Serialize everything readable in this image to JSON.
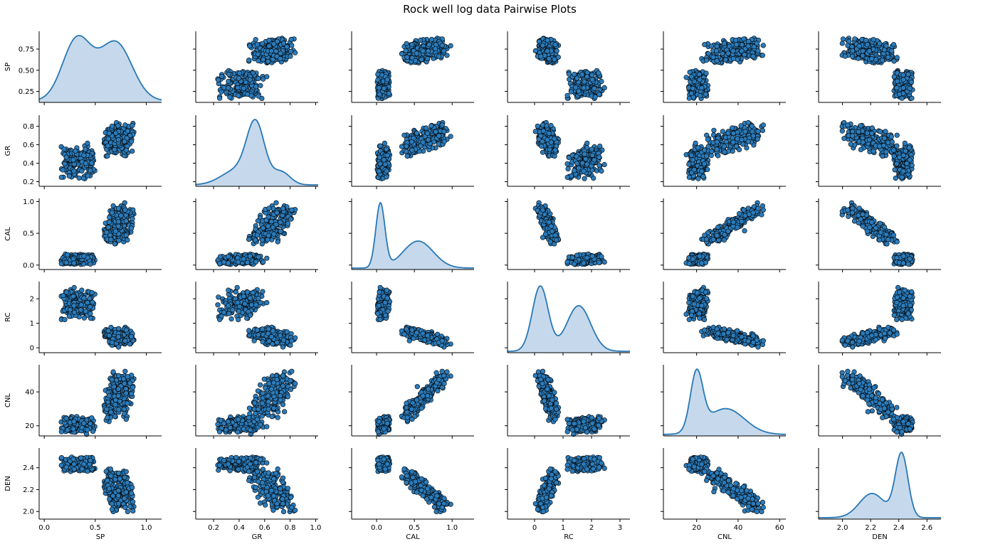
{
  "chart_data": {
    "type": "scatter",
    "title": "Rock well log data Pairwise Plots",
    "variables": [
      "SP",
      "GR",
      "CAL",
      "RC",
      "CNL",
      "DEN"
    ],
    "axes": {
      "SP": {
        "range": [
          -0.05,
          1.15
        ],
        "ticks": [
          0.0,
          0.5,
          1.0
        ],
        "tick_labels_x": [
          "0.0",
          "0.5",
          "1.0"
        ],
        "tick_labels_y": [
          "0.25",
          "0.50",
          "0.75"
        ],
        "ticks_y": [
          0.25,
          0.5,
          0.75
        ],
        "range_y": [
          0.12,
          0.96
        ]
      },
      "GR": {
        "range": [
          0.06,
          1.02
        ],
        "ticks": [
          0.2,
          0.4,
          0.6,
          0.8,
          1.0
        ],
        "tick_labels_x": [
          "0.2",
          "0.4",
          "0.6",
          "0.8",
          "1.0"
        ],
        "ticks_y": [
          0.2,
          0.4,
          0.6,
          0.8
        ],
        "tick_labels_y": [
          "0.2",
          "0.4",
          "0.6",
          "0.8"
        ],
        "range_y": [
          0.15,
          0.92
        ]
      },
      "CAL": {
        "range": [
          -0.33,
          1.29
        ],
        "ticks": [
          0.0,
          0.5,
          1.0
        ],
        "tick_labels_x": [
          "0.0",
          "0.5",
          "1.0"
        ],
        "ticks_y": [
          0.0,
          0.5,
          1.0
        ],
        "tick_labels_y": [
          "0.0",
          "0.5",
          "1.0"
        ],
        "range_y": [
          -0.07,
          1.05
        ]
      },
      "RC": {
        "range": [
          -0.95,
          3.35
        ],
        "ticks": [
          0,
          1,
          2,
          3
        ],
        "tick_labels_x": [
          "0",
          "1",
          "2",
          "3"
        ],
        "ticks_y": [
          0,
          1,
          2
        ],
        "tick_labels_y": [
          "0",
          "1",
          "2"
        ],
        "range_y": [
          -0.2,
          2.7
        ]
      },
      "CNL": {
        "range": [
          4,
          63
        ],
        "ticks": [
          20,
          40,
          60
        ],
        "tick_labels_x": [
          "20",
          "40",
          "60"
        ],
        "ticks_y": [
          20,
          40
        ],
        "tick_labels_y": [
          "20",
          "40"
        ],
        "range_y": [
          14,
          56
        ]
      },
      "DEN": {
        "range": [
          1.83,
          2.7
        ],
        "ticks": [
          2.0,
          2.2,
          2.4,
          2.6
        ],
        "tick_labels_x": [
          "2.0",
          "2.2",
          "2.4",
          "2.6"
        ],
        "ticks_y": [
          2.0,
          2.2,
          2.4
        ],
        "tick_labels_y": [
          "2.0",
          "2.2",
          "2.4"
        ],
        "range_y": [
          1.93,
          2.58
        ]
      }
    },
    "diagonal": "kde",
    "off_diagonal": "scatter",
    "clusters": [
      {
        "SP": [
          0.15,
          0.5
        ],
        "GR": [
          0.2,
          0.62
        ],
        "CAL": [
          0.0,
          0.18
        ],
        "RC": [
          1.05,
          2.55
        ],
        "CNL": [
          15,
          26
        ],
        "DEN": [
          2.36,
          2.5
        ]
      },
      {
        "SP": [
          0.55,
          0.92
        ],
        "GR": [
          0.45,
          0.88
        ],
        "CAL": [
          0.3,
          1.0
        ],
        "RC": [
          0.0,
          0.9
        ],
        "CNL": [
          22,
          54
        ],
        "DEN": [
          1.96,
          2.42
        ]
      }
    ],
    "kde": {
      "SP": {
        "modes": [
          [
            0.32,
            0.14,
            1.0
          ],
          [
            0.7,
            0.16,
            0.95
          ]
        ]
      },
      "GR": {
        "modes": [
          [
            0.53,
            0.07,
            1.0
          ],
          [
            0.38,
            0.12,
            0.25
          ],
          [
            0.73,
            0.07,
            0.22
          ]
        ]
      },
      "CAL": {
        "modes": [
          [
            0.05,
            0.06,
            1.0
          ],
          [
            0.55,
            0.2,
            0.42
          ]
        ]
      },
      "RC": {
        "modes": [
          [
            0.2,
            0.28,
            1.0
          ],
          [
            1.55,
            0.42,
            0.7
          ]
        ]
      },
      "CNL": {
        "modes": [
          [
            20,
            3.0,
            1.0
          ],
          [
            34,
            9.0,
            0.45
          ]
        ]
      },
      "DEN": {
        "modes": [
          [
            2.21,
            0.09,
            0.38
          ],
          [
            2.42,
            0.045,
            1.0
          ]
        ]
      }
    },
    "colors": {
      "fill": "#2b7bba",
      "edge": "#000000",
      "kde_line": "#2878b5",
      "kde_fill": "#c6d9ec"
    },
    "grid": false,
    "legend": "none"
  }
}
